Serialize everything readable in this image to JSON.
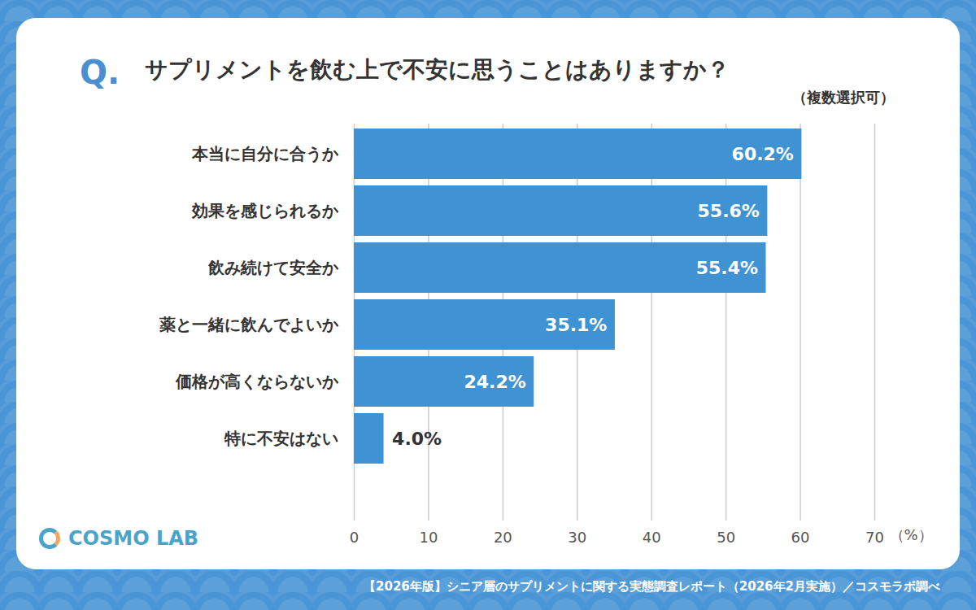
{
  "chart_data": {
    "type": "bar",
    "orientation": "horizontal",
    "title_prefix": "Q.",
    "title": "サプリメントを飲む上で不安に思うことはありますか？",
    "subtitle": "（複数選択可）",
    "categories": [
      "本当に自分に合うか",
      "効果を感じられるか",
      "飲み続けて安全か",
      "薬と一緒に飲んでよいか",
      "価格が高くならないか",
      "特に不安はない"
    ],
    "values": [
      60.2,
      55.6,
      55.4,
      35.1,
      24.2,
      4.0
    ],
    "value_labels": [
      "60.2%",
      "55.6%",
      "55.4%",
      "35.1%",
      "24.2%",
      "4.0%"
    ],
    "data_labels": true,
    "color": "#4093d3",
    "xlim": [
      0,
      70
    ],
    "xticks": [
      0,
      10,
      20,
      30,
      40,
      50,
      60,
      70
    ],
    "xlabel": "（%）",
    "grid": true,
    "logo": "COSMO LAB",
    "source": "【2026年版】シニア層のサプリメントに関する実態調査レポート（2026年2月実施）／コスモラボ調べ"
  }
}
